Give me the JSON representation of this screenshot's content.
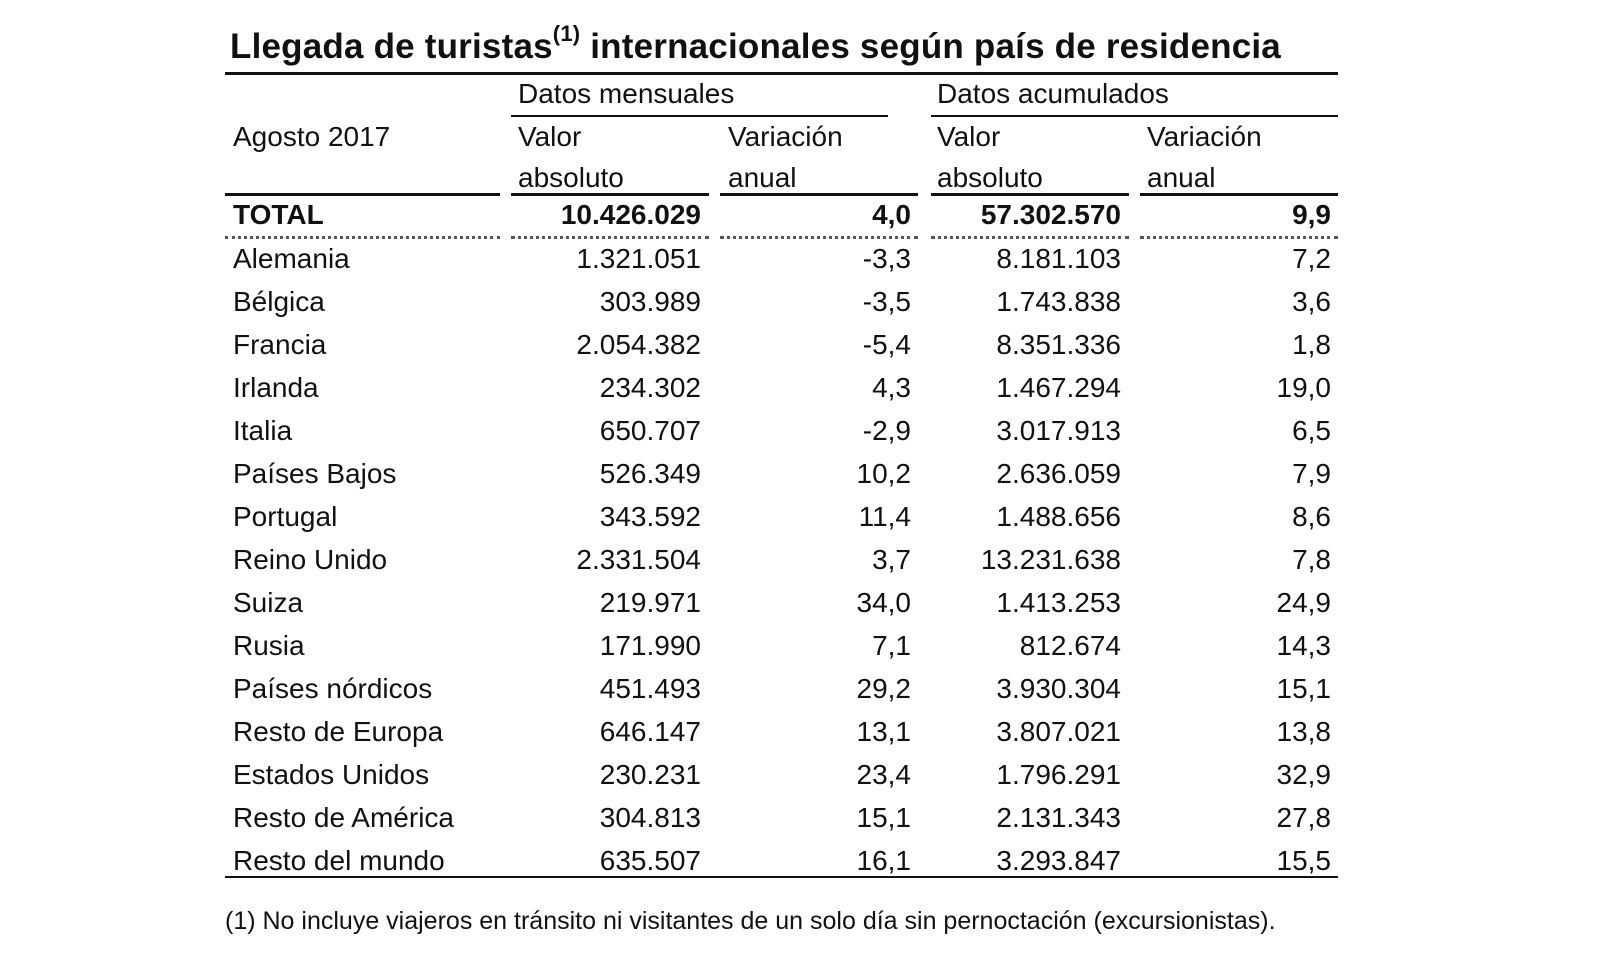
{
  "title": {
    "text_before": "Llegada de turistas",
    "superscript": "(1)",
    "text_after": " internacionales según país de residencia"
  },
  "header": {
    "period": "Agosto 2017",
    "group_monthly": "Datos mensuales",
    "group_cumulative": "Datos acumulados",
    "col_value_line1": "Valor",
    "col_value_line2": "absoluto",
    "col_var_line1": "Variación",
    "col_var_line2": "anual"
  },
  "total": {
    "label": "TOTAL",
    "monthly_value": "10.426.029",
    "monthly_var": "4,0",
    "cumulative_value": "57.302.570",
    "cumulative_var": "9,9"
  },
  "rows": [
    {
      "label": "Alemania",
      "monthly_value": "1.321.051",
      "monthly_var": "-3,3",
      "cumulative_value": "8.181.103",
      "cumulative_var": "7,2"
    },
    {
      "label": "Bélgica",
      "monthly_value": "303.989",
      "monthly_var": "-3,5",
      "cumulative_value": "1.743.838",
      "cumulative_var": "3,6"
    },
    {
      "label": "Francia",
      "monthly_value": "2.054.382",
      "monthly_var": "-5,4",
      "cumulative_value": "8.351.336",
      "cumulative_var": "1,8"
    },
    {
      "label": "Irlanda",
      "monthly_value": "234.302",
      "monthly_var": "4,3",
      "cumulative_value": "1.467.294",
      "cumulative_var": "19,0"
    },
    {
      "label": "Italia",
      "monthly_value": "650.707",
      "monthly_var": "-2,9",
      "cumulative_value": "3.017.913",
      "cumulative_var": "6,5"
    },
    {
      "label": "Países Bajos",
      "monthly_value": "526.349",
      "monthly_var": "10,2",
      "cumulative_value": "2.636.059",
      "cumulative_var": "7,9"
    },
    {
      "label": "Portugal",
      "monthly_value": "343.592",
      "monthly_var": "11,4",
      "cumulative_value": "1.488.656",
      "cumulative_var": "8,6"
    },
    {
      "label": "Reino Unido",
      "monthly_value": "2.331.504",
      "monthly_var": "3,7",
      "cumulative_value": "13.231.638",
      "cumulative_var": "7,8"
    },
    {
      "label": "Suiza",
      "monthly_value": "219.971",
      "monthly_var": "34,0",
      "cumulative_value": "1.413.253",
      "cumulative_var": "24,9"
    },
    {
      "label": "Rusia",
      "monthly_value": "171.990",
      "monthly_var": "7,1",
      "cumulative_value": "812.674",
      "cumulative_var": "14,3"
    },
    {
      "label": "Países nórdicos",
      "monthly_value": "451.493",
      "monthly_var": "29,2",
      "cumulative_value": "3.930.304",
      "cumulative_var": "15,1"
    },
    {
      "label": "Resto de Europa",
      "monthly_value": "646.147",
      "monthly_var": "13,1",
      "cumulative_value": "3.807.021",
      "cumulative_var": "13,8"
    },
    {
      "label": "Estados Unidos",
      "monthly_value": "230.231",
      "monthly_var": "23,4",
      "cumulative_value": "1.796.291",
      "cumulative_var": "32,9"
    },
    {
      "label": "Resto de América",
      "monthly_value": "304.813",
      "monthly_var": "15,1",
      "cumulative_value": "2.131.343",
      "cumulative_var": "27,8"
    },
    {
      "label": "Resto del mundo",
      "monthly_value": "635.507",
      "monthly_var": "16,1",
      "cumulative_value": "3.293.847",
      "cumulative_var": "15,5"
    }
  ],
  "footnote": "(1) No incluye viajeros en tránsito ni visitantes de un solo día sin pernoctación (excursionistas)."
}
